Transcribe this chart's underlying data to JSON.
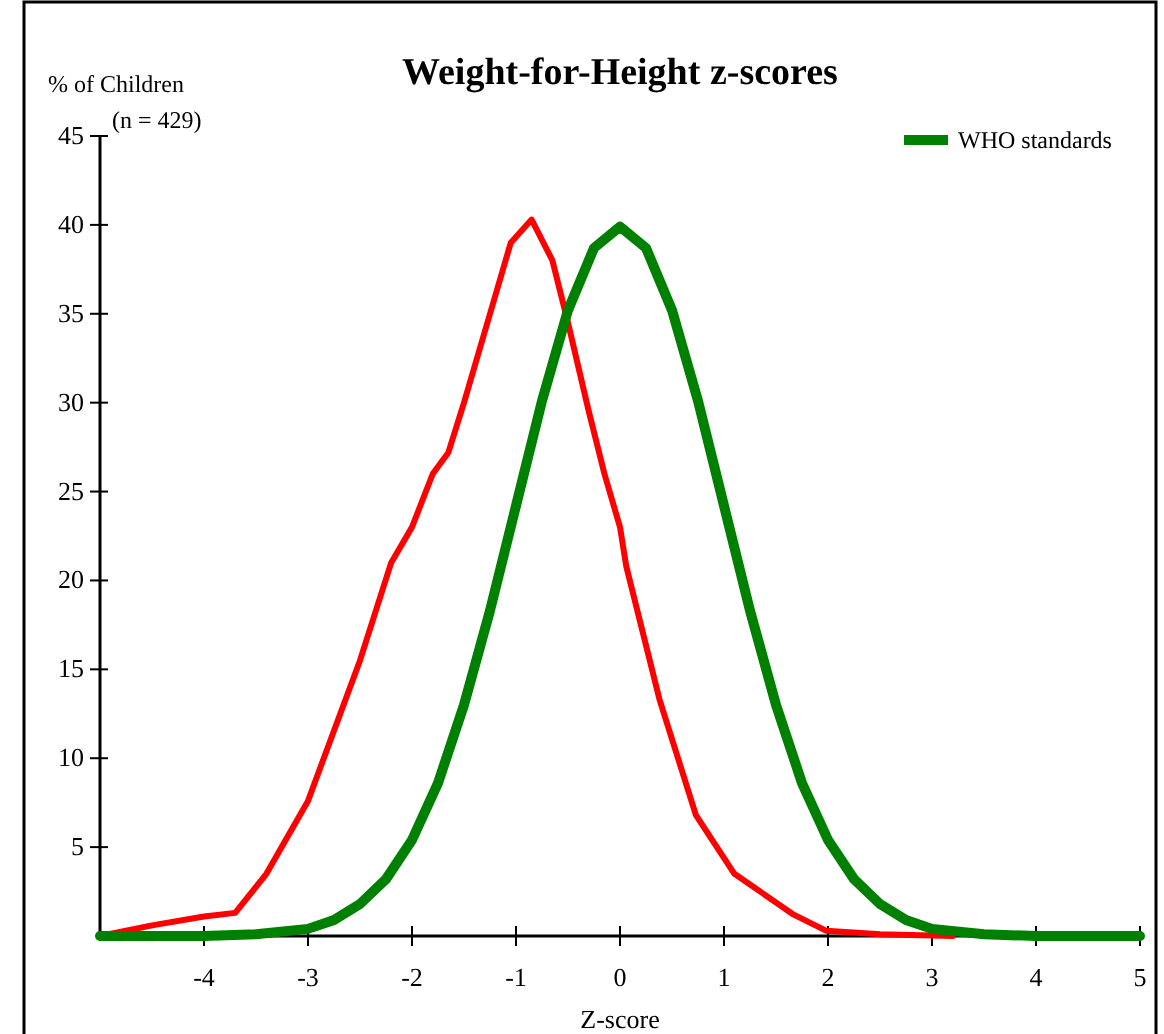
{
  "chart_data": {
    "type": "line",
    "title": "Weight-for-Height z-scores",
    "ylabel": "% of Children",
    "xlabel": "Z-score",
    "annotations": [
      "(n = 429)"
    ],
    "xlim": [
      -5,
      5
    ],
    "xticks": [
      -4,
      -3,
      -2,
      -1,
      0,
      1,
      2,
      3,
      4,
      5
    ],
    "ylim": [
      0,
      45
    ],
    "yticks": [
      5,
      10,
      15,
      20,
      25,
      30,
      35,
      40,
      45
    ],
    "grid": false,
    "legend": "top right",
    "marker": "none",
    "line_style": "solid",
    "series": [
      {
        "color": "#ff0000",
        "x": [
          -5,
          -4.5,
          -4,
          -3.7,
          -3.4,
          -3,
          -2.5,
          -2.2,
          -2,
          -1.8,
          -1.65,
          -1.5,
          -1.2,
          -1.05,
          -0.85,
          -0.65,
          -0.5,
          -0.3,
          -0.15,
          0,
          0.06,
          0.38,
          0.73,
          1.1,
          1.67,
          1.98,
          2.5,
          3.2
        ],
        "values": [
          0,
          0.6,
          1.1,
          1.3,
          3.5,
          7.6,
          15.5,
          21,
          23,
          26,
          27.2,
          30,
          36,
          39,
          40.3,
          38,
          34.5,
          29.5,
          26,
          23,
          20.8,
          13.3,
          6.8,
          3.5,
          1.2,
          0.3,
          0.1,
          0
        ]
      },
      {
        "name": "WHO standards",
        "color": "#008000",
        "x": [
          -5,
          -4,
          -3.5,
          -3,
          -2.75,
          -2.5,
          -2.25,
          -2,
          -1.75,
          -1.5,
          -1.25,
          -1,
          -0.75,
          -0.5,
          -0.25,
          0,
          0.25,
          0.5,
          0.75,
          1,
          1.25,
          1.5,
          1.75,
          2,
          2.25,
          2.5,
          2.75,
          3,
          3.5,
          4,
          5
        ],
        "values": [
          0,
          0,
          0.1,
          0.4,
          0.9,
          1.8,
          3.2,
          5.4,
          8.6,
          13,
          18.3,
          24.2,
          30.1,
          35.2,
          38.7,
          39.9,
          38.7,
          35.2,
          30.1,
          24.2,
          18.3,
          13,
          8.6,
          5.4,
          3.2,
          1.8,
          0.9,
          0.4,
          0.1,
          0,
          0
        ]
      }
    ]
  }
}
